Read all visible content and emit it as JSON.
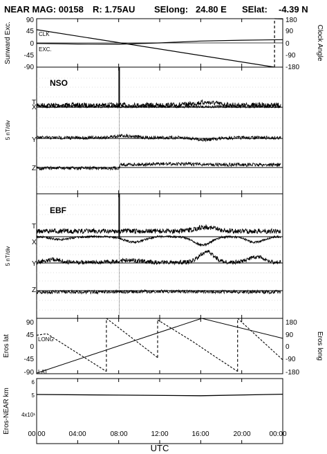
{
  "title_parts": [
    "NEAR MAG: 00158",
    "R: 1.75AU",
    "SElong:",
    "24.80 E",
    "SElat:",
    "-4.39 N"
  ],
  "axes": {
    "sunward_exc": "Sunward Exc.",
    "clock_angle": "Clock Angle",
    "field_left_1": "5 nT/div",
    "field_left_2": "5 nT/div",
    "eros_lat": "Eros lat",
    "eros_long": "Eros long",
    "eros_near_km": "Eros-NEAR km",
    "xlabel": "UTC"
  },
  "panel_labels": {
    "nso": "NSO",
    "ebf": "EBF",
    "clk": "CLK",
    "exc": "EXC.",
    "long": "LONG",
    "lat": "LAT"
  },
  "component_labels": {
    "nso": [
      "T",
      "X",
      "Y",
      "Z"
    ],
    "ebf": [
      "T",
      "X",
      "Y",
      "Z"
    ]
  },
  "ticks": {
    "x": [
      "00:00",
      "04:00",
      "08:00",
      "12:00",
      "16:00",
      "20:00",
      "00:00"
    ],
    "exc_left": [
      "90",
      "45",
      "0",
      "-45",
      "-90"
    ],
    "clock_right": [
      "180",
      "90",
      "0",
      "-90",
      "-180"
    ],
    "eros_lat_left": [
      "90",
      "45",
      "0",
      "-45",
      "-90"
    ],
    "eros_long_right": [
      "180",
      "90",
      "0",
      "-90",
      "-180"
    ],
    "dist_left": [
      "6",
      "5",
      "4x10¹"
    ]
  },
  "chart_data": [
    {
      "type": "line",
      "panel": "exc-clock",
      "x_range_hours": [
        0,
        24
      ],
      "ylim_left": [
        -90,
        90
      ],
      "ylim_right": [
        -180,
        180
      ],
      "series": [
        {
          "name": "EXC.",
          "axis": "left",
          "x": [
            0,
            4,
            8,
            12,
            16,
            20,
            24
          ],
          "y": [
            -2,
            -4,
            -5,
            0,
            7,
            10,
            12
          ]
        },
        {
          "name": "CLK",
          "axis": "right",
          "x": [
            0,
            23.2,
            23.2,
            23.2,
            24
          ],
          "y": [
            98,
            -180,
            -180,
            180,
            178
          ]
        }
      ]
    },
    {
      "type": "line",
      "panel": "NSO",
      "x_range_hours": [
        0,
        24
      ],
      "components": [
        "T",
        "X",
        "Y",
        "Z"
      ],
      "spike_hours": [
        8.05
      ]
    },
    {
      "type": "line",
      "panel": "EBF",
      "x_range_hours": [
        0,
        24
      ],
      "components": [
        "T",
        "X",
        "Y",
        "Z"
      ],
      "spike_hours": [
        8.05
      ]
    },
    {
      "type": "line",
      "panel": "eros-lat-long",
      "x_range_hours": [
        0,
        24
      ],
      "ylim_left": [
        -90,
        90
      ],
      "ylim_right": [
        -180,
        180
      ],
      "series": [
        {
          "name": "LAT",
          "axis": "left",
          "x": [
            0,
            16.1,
            24
          ],
          "y": [
            -88,
            90,
            25
          ]
        },
        {
          "name": "LONG",
          "axis": "right",
          "x": [
            0,
            1.0,
            6.8,
            6.8,
            11.8,
            11.8,
            15.2,
            17.2,
            19.6,
            19.6,
            24
          ],
          "y": [
            70,
            80,
            -165,
            180,
            -75,
            170,
            30,
            -60,
            -165,
            180,
            -90
          ]
        }
      ]
    },
    {
      "type": "line",
      "panel": "eros-near-distance",
      "x_range_hours": [
        0,
        24
      ],
      "series": [
        {
          "name": "Eros-NEAR km",
          "x": [
            0,
            8,
            16,
            24
          ],
          "y": [
            50,
            49.6,
            49.2,
            50.2
          ]
        }
      ]
    }
  ]
}
